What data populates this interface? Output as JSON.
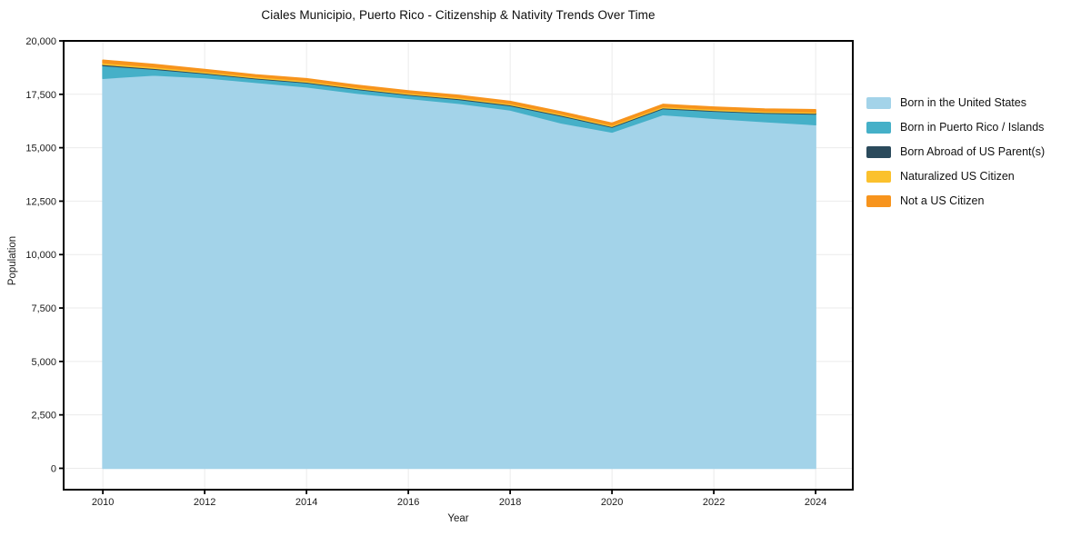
{
  "title": "Ciales Municipio, Puerto Rico - Citizenship & Nativity Trends Over Time",
  "chart_data": {
    "type": "area",
    "stacked": true,
    "title": "Ciales Municipio, Puerto Rico - Citizenship & Nativity Trends Over Time",
    "xlabel": "Year",
    "ylabel": "Population",
    "x": [
      2010,
      2011,
      2012,
      2013,
      2014,
      2015,
      2016,
      2017,
      2018,
      2019,
      2020,
      2021,
      2022,
      2023,
      2024
    ],
    "series": [
      {
        "name": "Born in the United States",
        "color": "#a3d3e9",
        "values": [
          18250,
          18400,
          18280,
          18060,
          17850,
          17550,
          17310,
          17080,
          16770,
          16160,
          15730,
          16550,
          16380,
          16220,
          16080
        ]
      },
      {
        "name": "Born in Puerto Rico / Islands",
        "color": "#45b0c8",
        "values": [
          600,
          280,
          190,
          170,
          190,
          180,
          160,
          180,
          200,
          330,
          230,
          280,
          330,
          400,
          500
        ]
      },
      {
        "name": "Born Abroad of US Parent(s)",
        "color": "#2b4a5c",
        "values": [
          50,
          40,
          40,
          40,
          40,
          40,
          40,
          40,
          40,
          40,
          40,
          40,
          40,
          40,
          40
        ]
      },
      {
        "name": "Naturalized US Citizen",
        "color": "#fbc12d",
        "values": [
          80,
          70,
          60,
          60,
          60,
          60,
          60,
          60,
          60,
          60,
          60,
          60,
          60,
          60,
          60
        ]
      },
      {
        "name": "Not a US Citizen",
        "color": "#f7941d",
        "values": [
          120,
          110,
          90,
          80,
          90,
          90,
          90,
          90,
          100,
          90,
          90,
          100,
          90,
          90,
          100
        ]
      }
    ],
    "x_ticks": [
      2010,
      2012,
      2014,
      2016,
      2018,
      2020,
      2022,
      2024
    ],
    "x_tick_labels": [
      "2010",
      "2012",
      "2014",
      "2016",
      "2018",
      "2020",
      "2022",
      "2024"
    ],
    "y_ticks": [
      0,
      2500,
      5000,
      7500,
      10000,
      12500,
      15000,
      17500,
      20000
    ],
    "y_tick_labels": [
      "0",
      "2,500",
      "5,000",
      "7,500",
      "10,000",
      "12,500",
      "15,000",
      "17,500",
      "20,000"
    ],
    "xlim": [
      2009.23,
      2024.73
    ],
    "ylim": [
      -1000,
      20000
    ],
    "grid": true,
    "legend_position": "right",
    "colors": {
      "grid": "#ebebeb",
      "spine": "#000000",
      "background": "#ffffff",
      "tick_text": "#1a1a1a"
    }
  }
}
